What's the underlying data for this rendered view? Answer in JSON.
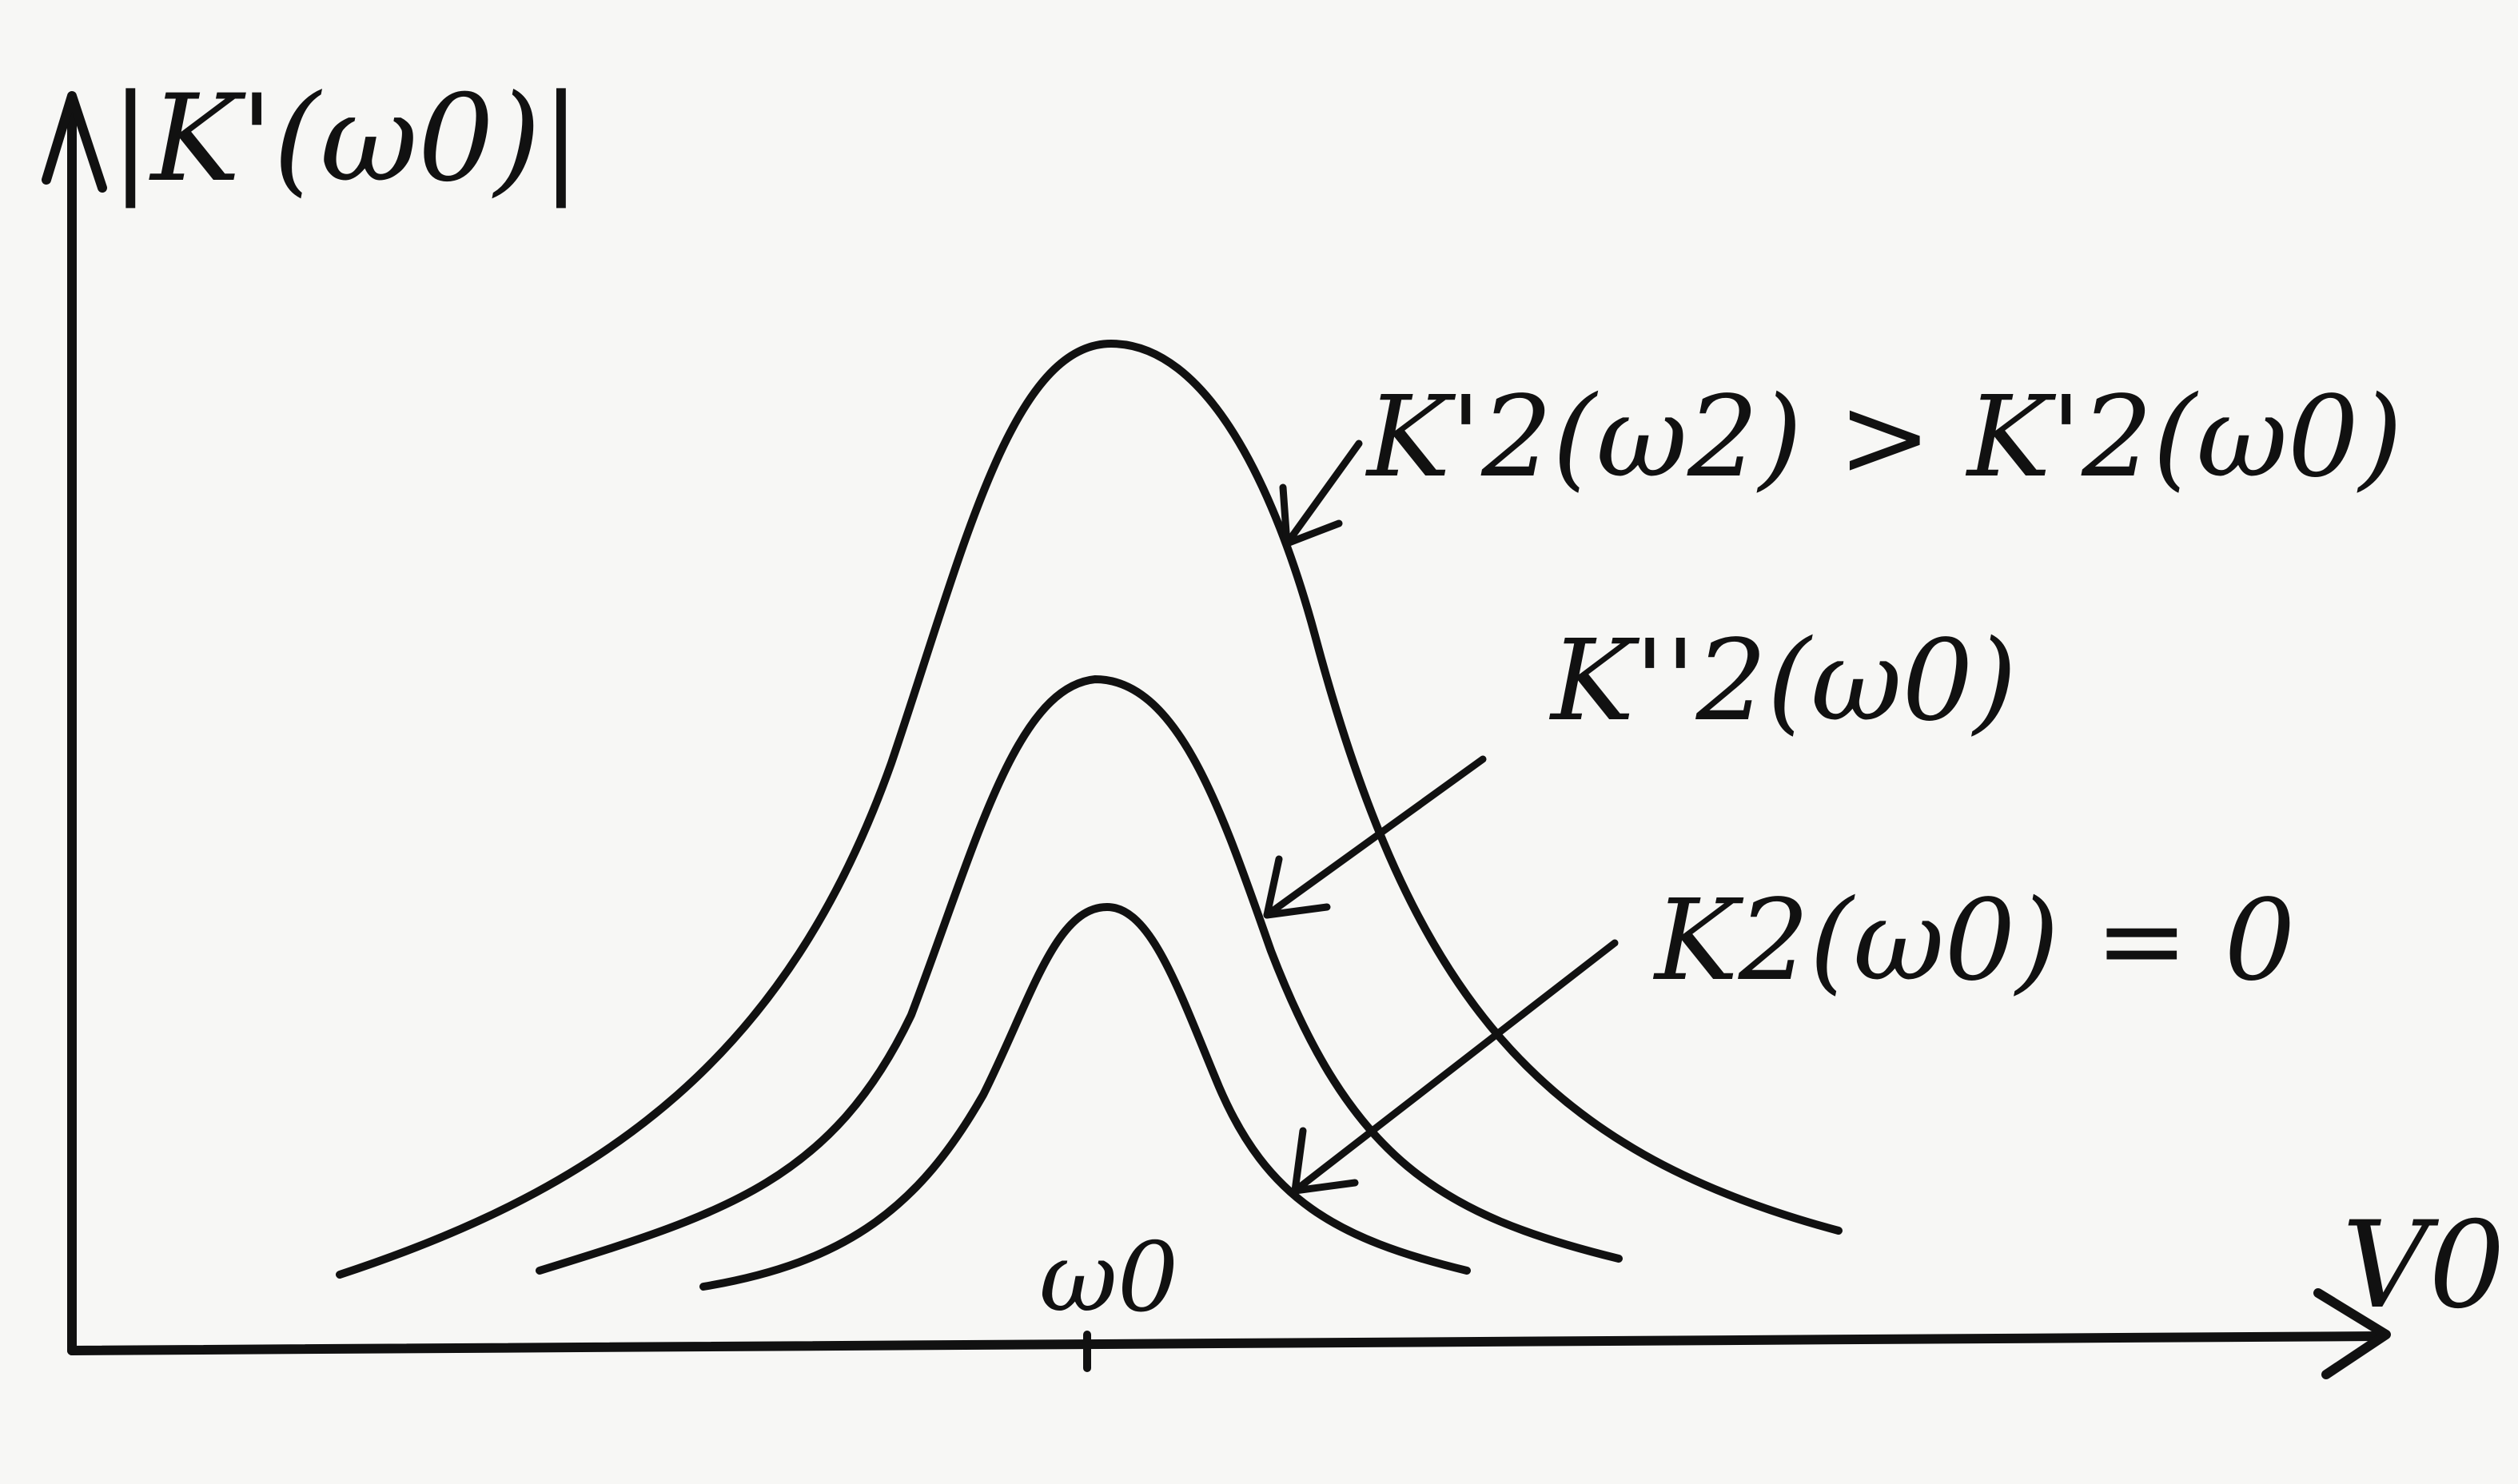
{
  "diagram": {
    "y_axis_label": "|K'(ω0)|",
    "x_axis_label": "V0",
    "center_tick_label": "ω0",
    "curves": [
      {
        "id": "tall",
        "label": "K'2(ω2) > K'2(ω0)",
        "relative_height": 1.0
      },
      {
        "id": "middle",
        "label": "K''2(ω0)",
        "relative_height": 0.65
      },
      {
        "id": "short",
        "label": "K2(ω0) = 0",
        "relative_height": 0.4
      }
    ],
    "ink_color": "#111111",
    "paper_color": "#f7f7f5"
  }
}
